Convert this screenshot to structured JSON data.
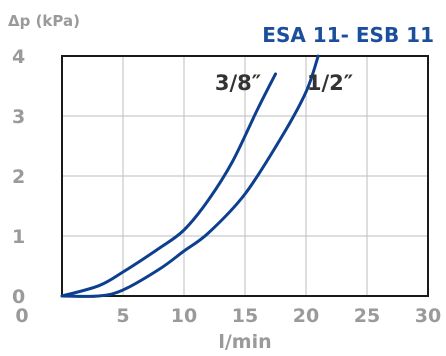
{
  "chart_data": {
    "type": "line",
    "title": "ESA 11- ESB 11",
    "ylabel": "Δp (kPa)",
    "xlabel": "l/min",
    "xlim": [
      0,
      30
    ],
    "ylim": [
      0,
      4
    ],
    "xticks": [
      "0",
      "5",
      "10",
      "15",
      "20",
      "25",
      "30"
    ],
    "yticks": [
      "0",
      "1",
      "2",
      "3",
      "4"
    ],
    "grid": true,
    "series": [
      {
        "name": "3/8″",
        "color": "#0d3f8f",
        "x": [
          0,
          3,
          5,
          8,
          10,
          12,
          14,
          16,
          17.5
        ],
        "y": [
          0,
          0.17,
          0.4,
          0.8,
          1.1,
          1.6,
          2.25,
          3.1,
          3.7
        ]
      },
      {
        "name": "1/2″",
        "color": "#0d3f8f",
        "x": [
          0,
          3,
          5,
          8,
          10,
          12,
          15,
          18,
          20,
          21
        ],
        "y": [
          0,
          0,
          0.1,
          0.45,
          0.75,
          1.05,
          1.7,
          2.65,
          3.4,
          4.0
        ]
      }
    ]
  }
}
